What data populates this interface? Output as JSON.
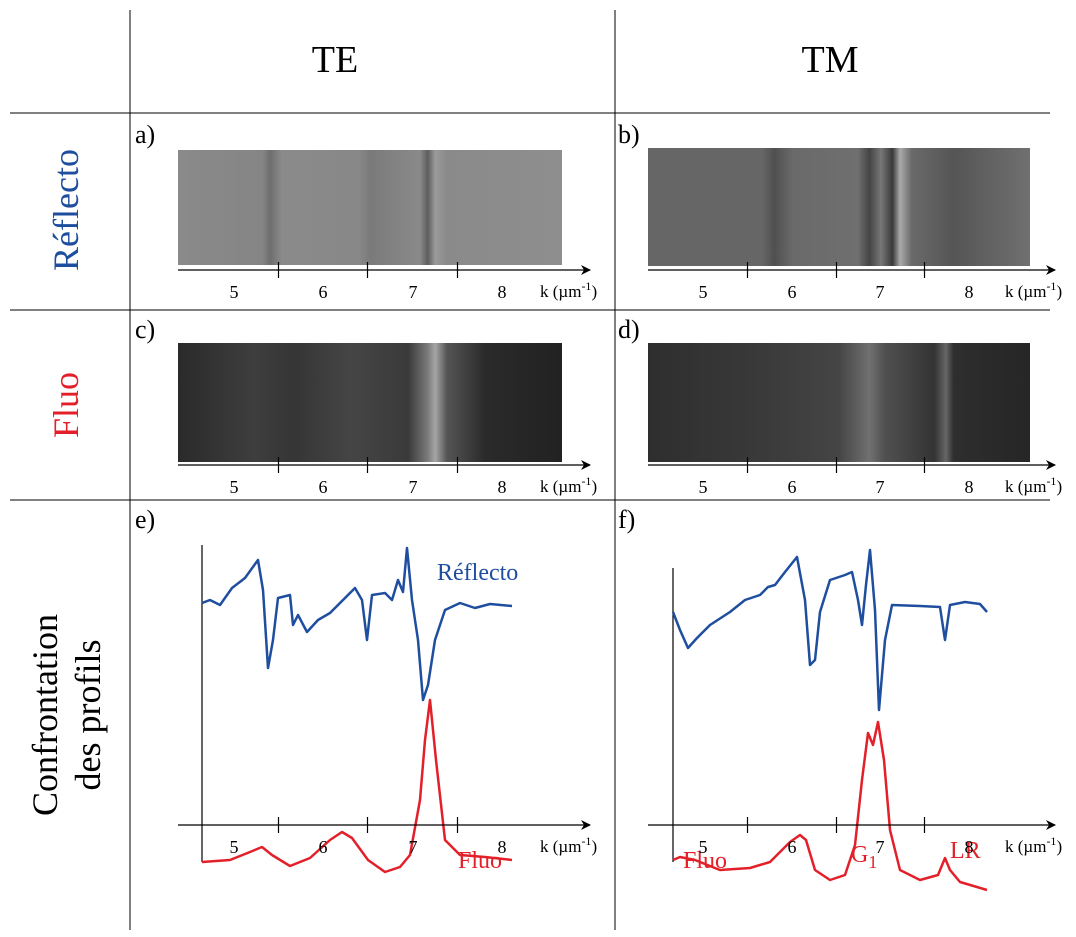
{
  "header": {
    "te": "TE",
    "tm": "TM"
  },
  "rows": {
    "reflecto": "Réflecto",
    "fluo": "Fluo",
    "confrontation": [
      "Confrontation",
      "des profils"
    ]
  },
  "axis_label": {
    "text": "k (µm",
    "sup": "-1",
    "close": ")"
  },
  "ticks": [
    "5",
    "6",
    "7",
    "8"
  ],
  "panels": [
    "a)",
    "b)",
    "c)",
    "d)",
    "e)",
    "f)"
  ],
  "curve_labels": {
    "e_reflecto": "Réflecto",
    "e_fluo": "Fluo",
    "f_fluo": "Fluo",
    "f_g": "G",
    "f_g_sub": "1",
    "f_lr": "LR"
  }
}
